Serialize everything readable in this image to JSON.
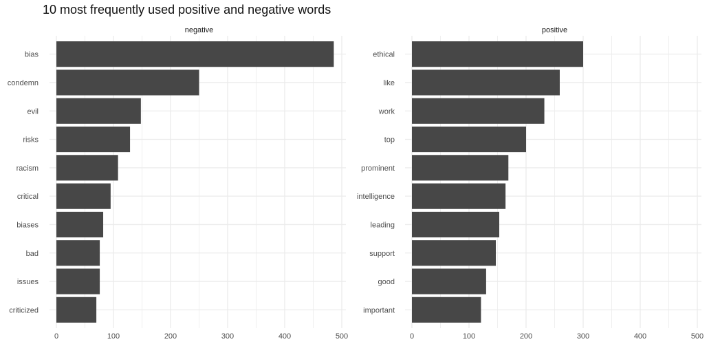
{
  "title": "10 most frequently used positive and negative words",
  "chart_data": {
    "type": "bar",
    "orientation": "horizontal",
    "title": "10 most frequently used positive and negative words",
    "xlabel": "",
    "ylabel": "",
    "xlim": [
      0,
      500
    ],
    "x_ticks": [
      0,
      100,
      200,
      300,
      400,
      500
    ],
    "grid": true,
    "bar_color": "#474747",
    "grid_color": "#ebebeb",
    "panels": [
      {
        "strip_label": "negative",
        "categories": [
          "bias",
          "condemn",
          "evil",
          "risks",
          "racism",
          "critical",
          "biases",
          "bad",
          "issues",
          "criticized"
        ],
        "values": [
          486,
          250,
          148,
          129,
          108,
          95,
          82,
          76,
          76,
          70
        ]
      },
      {
        "strip_label": "positive",
        "categories": [
          "ethical",
          "like",
          "work",
          "top",
          "prominent",
          "intelligence",
          "leading",
          "support",
          "good",
          "important"
        ],
        "values": [
          300,
          259,
          232,
          200,
          169,
          164,
          153,
          147,
          130,
          121
        ]
      }
    ]
  }
}
